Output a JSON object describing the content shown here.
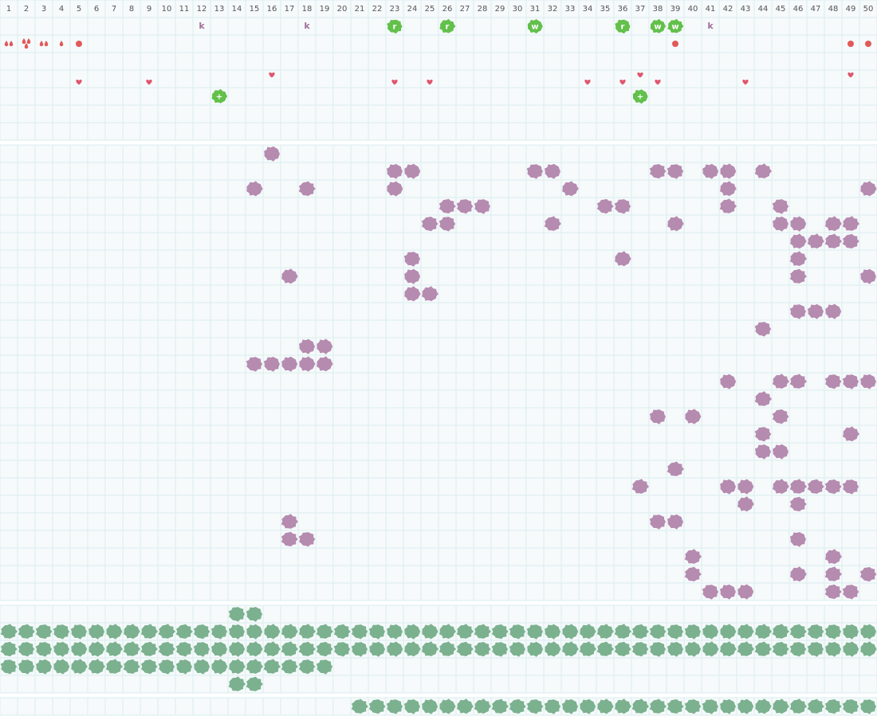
{
  "header": {
    "columns": [
      1,
      2,
      3,
      4,
      5,
      6,
      7,
      8,
      9,
      10,
      11,
      12,
      13,
      14,
      15,
      16,
      17,
      18,
      19,
      20,
      21,
      22,
      23,
      24,
      25,
      26,
      27,
      28,
      29,
      30,
      31,
      32,
      33,
      34,
      35,
      36,
      37,
      38,
      39,
      40,
      41,
      42,
      43,
      44,
      45,
      46,
      47,
      48,
      49,
      50
    ]
  },
  "top_panel": {
    "items": [
      {
        "row": 0,
        "col": 12,
        "kind": "letter",
        "label": "k"
      },
      {
        "row": 0,
        "col": 18,
        "kind": "letter",
        "label": "k"
      },
      {
        "row": 0,
        "col": 23,
        "kind": "tile",
        "label": "r"
      },
      {
        "row": 0,
        "col": 26,
        "kind": "tile",
        "label": "r"
      },
      {
        "row": 0,
        "col": 31,
        "kind": "tile",
        "label": "w"
      },
      {
        "row": 0,
        "col": 36,
        "kind": "tile",
        "label": "r"
      },
      {
        "row": 0,
        "col": 38,
        "kind": "tile",
        "label": "w"
      },
      {
        "row": 0,
        "col": 39,
        "kind": "tile",
        "label": "w"
      },
      {
        "row": 0,
        "col": 41,
        "kind": "letter",
        "label": "k"
      },
      {
        "row": 1,
        "col": 1,
        "kind": "drops",
        "count": 2
      },
      {
        "row": 1,
        "col": 2,
        "kind": "drops",
        "count": 3
      },
      {
        "row": 1,
        "col": 3,
        "kind": "drops",
        "count": 2
      },
      {
        "row": 1,
        "col": 4,
        "kind": "drops",
        "count": 1
      },
      {
        "row": 1,
        "col": 5,
        "kind": "dot"
      },
      {
        "row": 1,
        "col": 39,
        "kind": "dot"
      },
      {
        "row": 1,
        "col": 49,
        "kind": "dot"
      },
      {
        "row": 1,
        "col": 50,
        "kind": "dot"
      },
      {
        "row": 3,
        "col": 5,
        "kind": "heart"
      },
      {
        "row": 3,
        "col": 9,
        "kind": "heart"
      },
      {
        "row": 3,
        "col": 16,
        "kind": "heart-up"
      },
      {
        "row": 3,
        "col": 23,
        "kind": "heart"
      },
      {
        "row": 3,
        "col": 25,
        "kind": "heart"
      },
      {
        "row": 3,
        "col": 34,
        "kind": "heart"
      },
      {
        "row": 3,
        "col": 36,
        "kind": "heart"
      },
      {
        "row": 3,
        "col": 37,
        "kind": "heart-up"
      },
      {
        "row": 3,
        "col": 38,
        "kind": "heart"
      },
      {
        "row": 3,
        "col": 43,
        "kind": "heart"
      },
      {
        "row": 3,
        "col": 49,
        "kind": "heart-up"
      },
      {
        "row": 4,
        "col": 13,
        "kind": "tile",
        "label": "+"
      },
      {
        "row": 4,
        "col": 37,
        "kind": "tile",
        "label": "+"
      }
    ]
  },
  "middle_panel": {
    "rows": [
      [
        [
          16,
          16
        ]
      ],
      [
        [
          23,
          24
        ],
        [
          31,
          32
        ],
        [
          38,
          39
        ],
        [
          41,
          42
        ],
        [
          44,
          44
        ]
      ],
      [
        [
          15,
          15
        ],
        [
          18,
          18
        ],
        [
          23,
          23
        ],
        [
          33,
          33
        ],
        [
          42,
          42
        ],
        [
          50,
          50
        ]
      ],
      [
        [
          26,
          28
        ],
        [
          35,
          36
        ],
        [
          42,
          42
        ],
        [
          45,
          45
        ]
      ],
      [
        [
          25,
          26
        ],
        [
          32,
          32
        ],
        [
          39,
          39
        ],
        [
          45,
          46
        ],
        [
          48,
          49
        ]
      ],
      [
        [
          46,
          49
        ]
      ],
      [
        [
          24,
          24
        ],
        [
          36,
          36
        ],
        [
          46,
          46
        ]
      ],
      [
        [
          17,
          17
        ],
        [
          24,
          24
        ],
        [
          46,
          46
        ],
        [
          50,
          50
        ]
      ],
      [
        [
          24,
          25
        ]
      ],
      [
        [
          46,
          48
        ]
      ],
      [
        [
          44,
          44
        ]
      ],
      [
        [
          18,
          19
        ]
      ],
      [
        [
          15,
          19
        ]
      ],
      [
        [
          42,
          42
        ],
        [
          45,
          46
        ],
        [
          48,
          50
        ]
      ],
      [
        [
          44,
          44
        ]
      ],
      [
        [
          38,
          38
        ],
        [
          40,
          40
        ],
        [
          45,
          45
        ]
      ],
      [
        [
          44,
          44
        ],
        [
          49,
          49
        ]
      ],
      [
        [
          44,
          45
        ]
      ],
      [
        [
          39,
          39
        ]
      ],
      [
        [
          37,
          37
        ],
        [
          42,
          43
        ],
        [
          45,
          49
        ]
      ],
      [
        [
          43,
          43
        ],
        [
          46,
          46
        ]
      ],
      [
        [
          17,
          17
        ],
        [
          38,
          39
        ]
      ],
      [
        [
          17,
          18
        ],
        [
          46,
          46
        ]
      ],
      [
        [
          40,
          40
        ],
        [
          48,
          48
        ]
      ],
      [
        [
          40,
          40
        ],
        [
          46,
          46
        ],
        [
          48,
          48
        ],
        [
          50,
          50
        ]
      ],
      [
        [
          41,
          43
        ],
        [
          48,
          49
        ]
      ]
    ]
  },
  "lower_panel": {
    "rows": [
      [
        [
          14,
          15
        ]
      ],
      [
        [
          1,
          50
        ]
      ],
      [
        [
          1,
          50
        ]
      ],
      [
        [
          1,
          19
        ]
      ],
      [
        [
          14,
          15
        ]
      ]
    ]
  },
  "bottom_panel": {
    "rows": [
      [
        [
          21,
          50
        ]
      ]
    ]
  }
}
